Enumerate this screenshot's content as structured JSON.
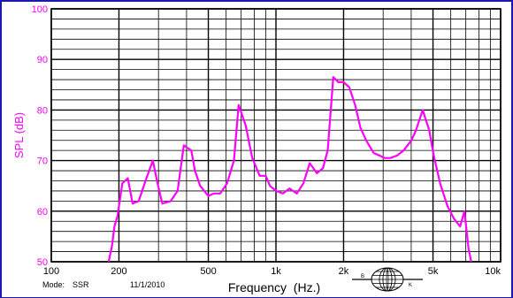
{
  "footer": {
    "mode_label": "Mode:",
    "mode_value": "SSR",
    "date": "11/1/2010",
    "logo_letters": "B&K"
  },
  "colors": {
    "curve": "#ff00ff",
    "y_axis_text": "#ff00ff",
    "grid": "#000000",
    "border": "#1a1ab0"
  },
  "chart_data": {
    "type": "line",
    "title": "",
    "xlabel": "Frequency  (Hz.)",
    "ylabel": "SPL (dB)",
    "x_scale": "log",
    "xlim": [
      100,
      10000
    ],
    "ylim": [
      50,
      100
    ],
    "grid": true,
    "x_ticks": [
      {
        "value": 100,
        "label": "100"
      },
      {
        "value": 200,
        "label": "200"
      },
      {
        "value": 500,
        "label": "500"
      },
      {
        "value": 1000,
        "label": "1k"
      },
      {
        "value": 2000,
        "label": "2k"
      },
      {
        "value": 5000,
        "label": "5k"
      },
      {
        "value": 10000,
        "label": "10k"
      }
    ],
    "y_ticks": [
      {
        "value": 50,
        "label": "50"
      },
      {
        "value": 60,
        "label": "60"
      },
      {
        "value": 70,
        "label": "70"
      },
      {
        "value": 80,
        "label": "80"
      },
      {
        "value": 90,
        "label": "90"
      },
      {
        "value": 100,
        "label": "100"
      }
    ],
    "series": [
      {
        "x": [
          180,
          186,
          191,
          197,
          207,
          219,
          230,
          245,
          265,
          283,
          297,
          312,
          340,
          365,
          389,
          420,
          436,
          460,
          500,
          530,
          565,
          606,
          650,
          682,
          733,
          784,
          846,
          900,
          940,
          1000,
          1075,
          1148,
          1238,
          1325,
          1414,
          1522,
          1618,
          1700,
          1800,
          1893,
          2000,
          2120,
          2250,
          2376,
          2520,
          2720,
          2890,
          3047,
          3230,
          3460,
          3700,
          4011,
          4200,
          4500,
          4810,
          5040,
          5380,
          5800,
          6200,
          6600,
          6900,
          7200,
          7400
        ],
        "y": [
          50,
          53,
          57,
          59,
          65.5,
          66.5,
          61.5,
          62,
          66.5,
          70,
          65.5,
          61.5,
          62,
          64,
          73,
          72,
          68,
          65,
          63,
          63.5,
          63.5,
          65.5,
          70,
          81,
          77,
          70.5,
          67,
          67,
          65,
          64,
          63.5,
          64.5,
          63.5,
          65.5,
          69.5,
          67.5,
          68.5,
          72,
          86.5,
          85.5,
          85.5,
          84.5,
          81,
          76.5,
          74,
          71.5,
          71,
          70.5,
          70.5,
          71,
          72,
          74,
          76,
          80,
          76,
          71,
          65.5,
          61,
          58.5,
          57,
          60,
          52.5,
          50
        ]
      }
    ]
  }
}
